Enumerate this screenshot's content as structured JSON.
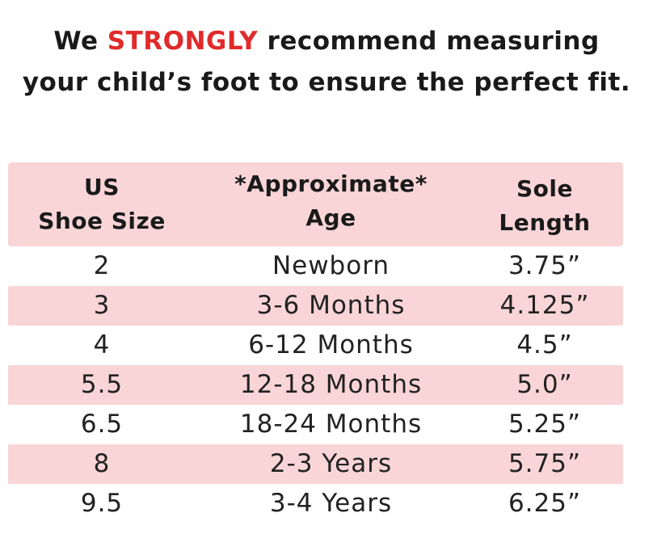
{
  "headline": {
    "line1_pre": "We ",
    "line1_emphasis": "STRONGLY",
    "line1_post": " recommend measuring",
    "line2": "your child’s foot to ensure the perfect fit."
  },
  "colors": {
    "emphasis": "#e12a2a",
    "row_highlight": "#f9d5d7"
  },
  "table": {
    "headers": [
      {
        "line1": "US",
        "line2": "Shoe Size"
      },
      {
        "line1": "*Approximate*",
        "line2": "Age"
      },
      {
        "line1": "Sole",
        "line2": "Length"
      }
    ],
    "rows": [
      {
        "size": "2",
        "age": "Newborn",
        "length": "3.75”"
      },
      {
        "size": "3",
        "age": "3-6 Months",
        "length": "4.125”"
      },
      {
        "size": "4",
        "age": "6-12 Months",
        "length": "4.5”"
      },
      {
        "size": "5.5",
        "age": "12-18 Months",
        "length": "5.0”"
      },
      {
        "size": "6.5",
        "age": "18-24 Months",
        "length": "5.25”"
      },
      {
        "size": "8",
        "age": "2-3 Years",
        "length": "5.75”"
      },
      {
        "size": "9.5",
        "age": "3-4 Years",
        "length": "6.25”"
      }
    ]
  }
}
